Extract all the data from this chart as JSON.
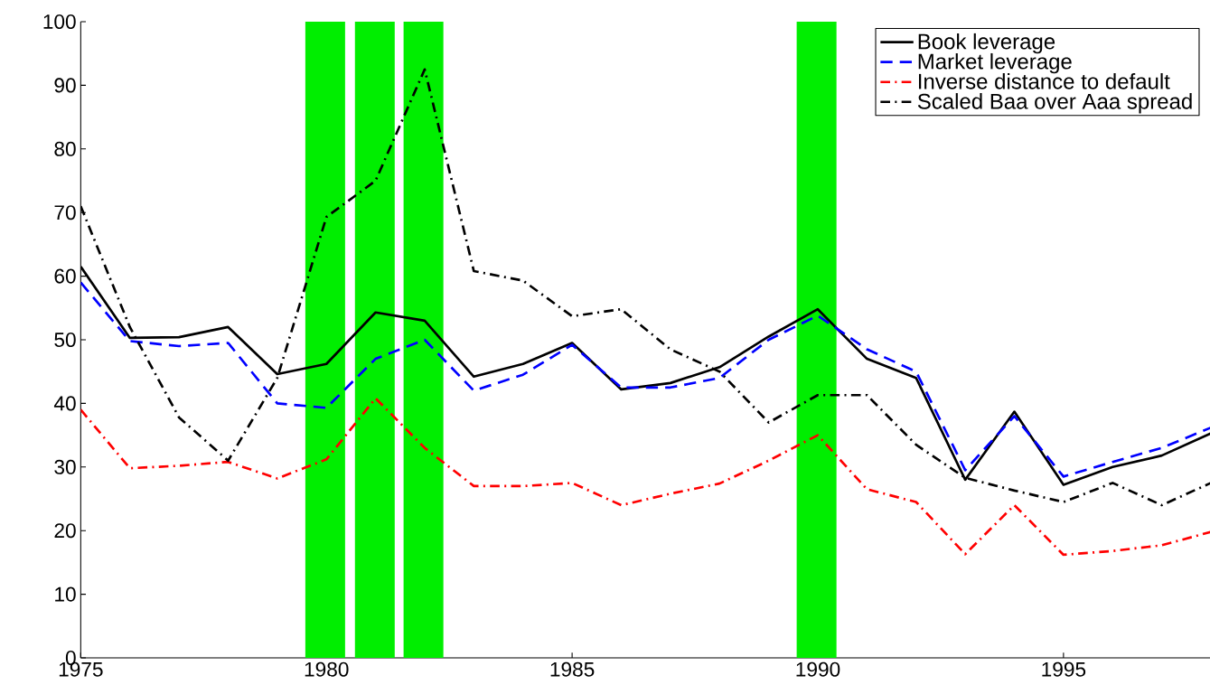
{
  "chart_data": {
    "type": "line",
    "x": [
      1975,
      1976,
      1977,
      1978,
      1979,
      1980,
      1981,
      1982,
      1983,
      1984,
      1985,
      1986,
      1987,
      1988,
      1989,
      1990,
      1991,
      1992,
      1993,
      1994,
      1995,
      1996,
      1997,
      1998
    ],
    "series": [
      {
        "name": "Book leverage",
        "color": "#000000",
        "line_style": "solid",
        "values": [
          61.5,
          50.3,
          50.4,
          52,
          44.6,
          46.2,
          54.3,
          53,
          44.2,
          46.2,
          49.5,
          42.2,
          43.2,
          45.7,
          50.5,
          54.8,
          47,
          44,
          28,
          38.7,
          27.2,
          30,
          31.8,
          35.3
        ]
      },
      {
        "name": "Market leverage",
        "color": "#0000ff",
        "line_style": "dashed",
        "values": [
          59,
          49.8,
          49,
          49.5,
          40,
          39.3,
          47,
          50,
          42,
          44.5,
          49.2,
          42.5,
          42.5,
          44,
          50,
          53.8,
          48.5,
          45,
          29.5,
          38,
          28.5,
          30.8,
          33,
          36.2
        ]
      },
      {
        "name": "Inverse distance to default",
        "color": "#ff0000",
        "line_style": "dashdot",
        "values": [
          39,
          29.8,
          30.2,
          30.8,
          28.2,
          31.2,
          40.8,
          33,
          27,
          27,
          27.5,
          24,
          25.8,
          27.4,
          31,
          35,
          26.5,
          24.5,
          16.3,
          24,
          16.2,
          16.8,
          17.7,
          19.8
        ]
      },
      {
        "name": "Scaled Baa over Aaa spread",
        "color": "#000000",
        "line_style": "dashdot",
        "values": [
          71,
          52,
          37.8,
          31,
          44,
          69.3,
          75,
          92.5,
          60.8,
          59.3,
          53.7,
          54.8,
          48.5,
          45,
          37,
          41.3,
          41.3,
          33.5,
          28.3,
          26.3,
          24.5,
          27.5,
          24,
          27.5
        ]
      }
    ],
    "bands": [
      {
        "axis": "x",
        "from": 1979.57,
        "to": 1980.38,
        "color": "#00ee00"
      },
      {
        "axis": "x",
        "from": 1980.58,
        "to": 1981.39,
        "color": "#00ee00"
      },
      {
        "axis": "x",
        "from": 1981.57,
        "to": 1982.38,
        "color": "#00ee00"
      },
      {
        "axis": "x",
        "from": 1989.57,
        "to": 1990.38,
        "color": "#00ee00"
      }
    ],
    "xlim": [
      1975,
      1998
    ],
    "xticks": [
      1975,
      1980,
      1985,
      1990,
      1995
    ],
    "ylim": [
      0,
      100
    ],
    "yticks": [
      0,
      10,
      20,
      30,
      40,
      50,
      60,
      70,
      80,
      90,
      100
    ],
    "legend": "top right",
    "grid": false,
    "marker": "none"
  }
}
